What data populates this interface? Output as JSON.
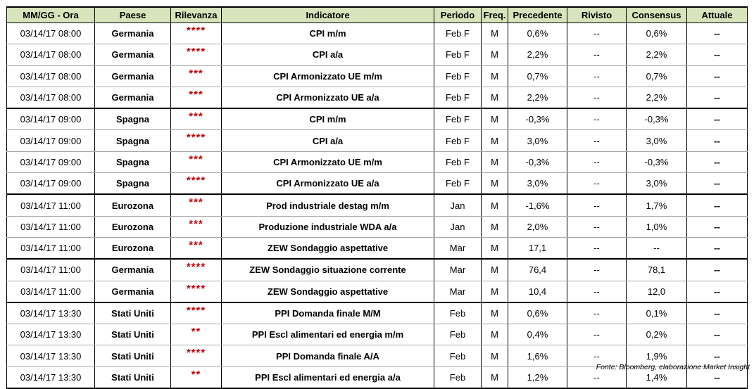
{
  "headers": [
    "MM/GG - Ora",
    "Paese",
    "Rilevanza",
    "Indicatore",
    "Periodo",
    "Freq.",
    "Precedente",
    "Rivisto",
    "Consensus",
    "Attuale"
  ],
  "rows": [
    {
      "time": "03/14/17 08:00",
      "country": "Germania",
      "rel": "****",
      "ind": "CPI m/m",
      "period": "Feb F",
      "freq": "M",
      "prev": "0,6%",
      "rev": "--",
      "cons": "0,6%",
      "act": "--"
    },
    {
      "time": "03/14/17 08:00",
      "country": "Germania",
      "rel": "****",
      "ind": "CPI a/a",
      "period": "Feb F",
      "freq": "M",
      "prev": "2,2%",
      "rev": "--",
      "cons": "2,2%",
      "act": "--"
    },
    {
      "time": "03/14/17 08:00",
      "country": "Germania",
      "rel": "***",
      "ind": "CPI Armonizzato UE m/m",
      "period": "Feb F",
      "freq": "M",
      "prev": "0,7%",
      "rev": "--",
      "cons": "0,7%",
      "act": "--"
    },
    {
      "time": "03/14/17 08:00",
      "country": "Germania",
      "rel": "***",
      "ind": "CPI Armonizzato UE a/a",
      "period": "Feb F",
      "freq": "M",
      "prev": "2,2%",
      "rev": "--",
      "cons": "2,2%",
      "act": "--"
    },
    {
      "time": "03/14/17 09:00",
      "country": "Spagna",
      "rel": "***",
      "ind": "CPI m/m",
      "period": "Feb F",
      "freq": "M",
      "prev": "-0,3%",
      "rev": "--",
      "cons": "-0,3%",
      "act": "--"
    },
    {
      "time": "03/14/17 09:00",
      "country": "Spagna",
      "rel": "****",
      "ind": "CPI a/a",
      "period": "Feb F",
      "freq": "M",
      "prev": "3,0%",
      "rev": "--",
      "cons": "3,0%",
      "act": "--"
    },
    {
      "time": "03/14/17 09:00",
      "country": "Spagna",
      "rel": "***",
      "ind": "CPI Armonizzato UE m/m",
      "period": "Feb F",
      "freq": "M",
      "prev": "-0,3%",
      "rev": "--",
      "cons": "-0,3%",
      "act": "--"
    },
    {
      "time": "03/14/17 09:00",
      "country": "Spagna",
      "rel": "****",
      "ind": "CPI Armonizzato UE a/a",
      "period": "Feb F",
      "freq": "M",
      "prev": "3,0%",
      "rev": "--",
      "cons": "3,0%",
      "act": "--"
    },
    {
      "time": "03/14/17 11:00",
      "country": "Eurozona",
      "rel": "***",
      "ind": "Prod industriale destag m/m",
      "period": "Jan",
      "freq": "M",
      "prev": "-1,6%",
      "rev": "--",
      "cons": "1,7%",
      "act": "--"
    },
    {
      "time": "03/14/17 11:00",
      "country": "Eurozona",
      "rel": "***",
      "ind": "Produzione industriale WDA a/a",
      "period": "Jan",
      "freq": "M",
      "prev": "2,0%",
      "rev": "--",
      "cons": "1,0%",
      "act": "--"
    },
    {
      "time": "03/14/17 11:00",
      "country": "Eurozona",
      "rel": "***",
      "ind": "ZEW Sondaggio aspettative",
      "period": "Mar",
      "freq": "M",
      "prev": "17,1",
      "rev": "--",
      "cons": "--",
      "act": "--"
    },
    {
      "time": "03/14/17 11:00",
      "country": "Germania",
      "rel": "****",
      "ind": "ZEW Sondaggio situazione corrente",
      "period": "Mar",
      "freq": "M",
      "prev": "76,4",
      "rev": "--",
      "cons": "78,1",
      "act": "--"
    },
    {
      "time": "03/14/17 11:00",
      "country": "Germania",
      "rel": "****",
      "ind": "ZEW Sondaggio aspettative",
      "period": "Mar",
      "freq": "M",
      "prev": "10,4",
      "rev": "--",
      "cons": "12,0",
      "act": "--"
    },
    {
      "time": "03/14/17 13:30",
      "country": "Stati Uniti",
      "rel": "****",
      "ind": "PPI Domanda finale M/M",
      "period": "Feb",
      "freq": "M",
      "prev": "0,6%",
      "rev": "--",
      "cons": "0,1%",
      "act": "--"
    },
    {
      "time": "03/14/17 13:30",
      "country": "Stati Uniti",
      "rel": "**",
      "ind": "PPI Escl alimentari ed energia m/m",
      "period": "Feb",
      "freq": "M",
      "prev": "0,4%",
      "rev": "--",
      "cons": "0,2%",
      "act": "--"
    },
    {
      "time": "03/14/17 13:30",
      "country": "Stati Uniti",
      "rel": "****",
      "ind": "PPI Domanda finale A/A",
      "period": "Feb",
      "freq": "M",
      "prev": "1,6%",
      "rev": "--",
      "cons": "1,9%",
      "act": "--"
    },
    {
      "time": "03/14/17 13:30",
      "country": "Stati Uniti",
      "rel": "**",
      "ind": "PPI Escl alimentari ed energia a/a",
      "period": "Feb",
      "freq": "M",
      "prev": "1,2%",
      "rev": "--",
      "cons": "1,4%",
      "act": "--"
    }
  ],
  "source": "Fonte: Bloomberg, elaborazione Market Insight",
  "colors": {
    "header_bg": "#d8e4bc",
    "stars": "#c00000"
  }
}
